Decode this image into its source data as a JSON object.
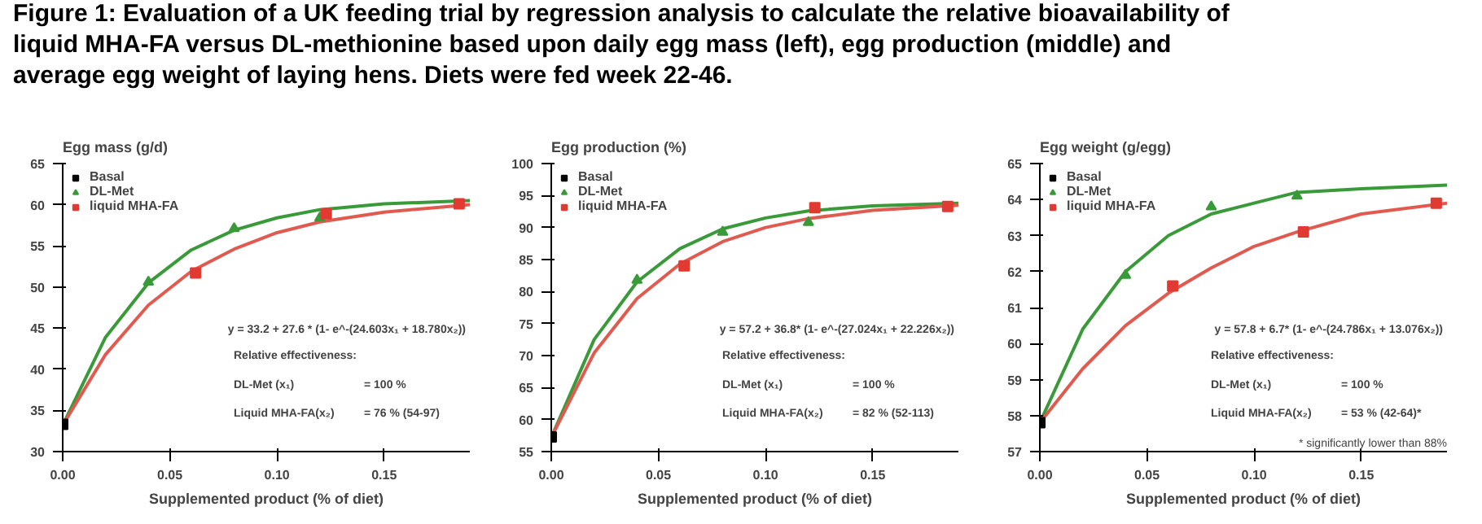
{
  "chart_data": [
    {
      "type": "scatter",
      "title": "Figure 1: Evaluation of a UK feeding trial by regression analysis to calculate the relative bioavailability of liquid MHA-FA versus DL-methionine based upon daily egg mass (left), egg production (middle) and average egg weight of laying hens. Diets were fed week 22-46.",
      "ylabel": "Egg mass (g/d)",
      "xlabel": "Supplemented product (% of diet)",
      "xlim": [
        0,
        0.19
      ],
      "xticks": [
        {
          "value": 0,
          "label": "0.00"
        },
        {
          "value": 0.05,
          "label": "0.05"
        },
        {
          "value": 0.1,
          "label": "0.10"
        },
        {
          "value": 0.15,
          "label": "0.15"
        }
      ],
      "ylim": [
        30,
        65
      ],
      "yticks": [
        30,
        35,
        40,
        45,
        50,
        55,
        60,
        65
      ],
      "grid": false,
      "legend": "top left",
      "series": [
        {
          "type": "line",
          "color": "#3a9a3a",
          "x": [
            0,
            0.02,
            0.04,
            0.06,
            0.08,
            0.1,
            0.12,
            0.15,
            0.19
          ],
          "values": [
            33.2,
            43.9,
            50.5,
            54.5,
            56.9,
            58.4,
            59.4,
            60.1,
            60.5
          ]
        },
        {
          "type": "line",
          "color": "#e05a50",
          "x": [
            0,
            0.02,
            0.04,
            0.06,
            0.08,
            0.1,
            0.12,
            0.15,
            0.19
          ],
          "values": [
            33.2,
            41.8,
            47.8,
            51.9,
            54.6,
            56.6,
            57.9,
            59.1,
            60.0
          ]
        },
        {
          "name": "Basal",
          "color": "#000000",
          "marker": "square",
          "x": [
            0
          ],
          "values": [
            33.3
          ]
        },
        {
          "name": "DL-Met",
          "color": "#3a9a3a",
          "marker": "triangle",
          "x": [
            0.04,
            0.08,
            0.12
          ],
          "values": [
            50.6,
            57.1,
            58.4
          ]
        },
        {
          "name": "liquid MHA-FA",
          "color": "#e03a32",
          "marker": "square",
          "x": [
            0.062,
            0.123,
            0.185
          ],
          "values": [
            51.7,
            58.9,
            60.1
          ]
        }
      ],
      "annotations": [
        "y = 33.2 + 27.6 * (1- e^-(24.603x₁ + 18.780x₂))",
        "Relative effectiveness:",
        "DL-Met (x₁)",
        "= 100 %",
        "Liquid MHA-FA(x₂)",
        "= 76 % (54-97)"
      ]
    },
    {
      "type": "scatter",
      "ylabel": "Egg production (%)",
      "xlabel": "Supplemented product (% of diet)",
      "xlim": [
        0,
        0.19
      ],
      "xticks": [
        {
          "value": 0,
          "label": "0.00"
        },
        {
          "value": 0.05,
          "label": "0.05"
        },
        {
          "value": 0.1,
          "label": "0.10"
        },
        {
          "value": 0.15,
          "label": "0.15"
        }
      ],
      "ylim": [
        55,
        100
      ],
      "yticks": [
        55,
        60,
        65,
        70,
        75,
        80,
        85,
        90,
        95,
        100
      ],
      "grid": false,
      "legend": "top left",
      "series": [
        {
          "type": "line",
          "color": "#3a9a3a",
          "x": [
            0,
            0.02,
            0.04,
            0.06,
            0.08,
            0.1,
            0.12,
            0.15,
            0.19
          ],
          "values": [
            57.2,
            72.5,
            81.5,
            86.7,
            89.8,
            91.5,
            92.6,
            93.4,
            93.8
          ]
        },
        {
          "type": "line",
          "color": "#e05a50",
          "x": [
            0,
            0.02,
            0.04,
            0.06,
            0.08,
            0.1,
            0.12,
            0.15,
            0.19
          ],
          "values": [
            57.2,
            70.4,
            78.9,
            84.3,
            87.8,
            90.0,
            91.4,
            92.7,
            93.5
          ]
        },
        {
          "name": "Basal",
          "color": "#000000",
          "marker": "square",
          "x": [
            0
          ],
          "values": [
            57.3
          ]
        },
        {
          "name": "DL-Met",
          "color": "#3a9a3a",
          "marker": "triangle",
          "x": [
            0.04,
            0.08,
            0.12
          ],
          "values": [
            81.8,
            89.3,
            90.8
          ]
        },
        {
          "name": "liquid MHA-FA",
          "color": "#e03a32",
          "marker": "square",
          "x": [
            0.062,
            0.123,
            0.185
          ],
          "values": [
            84.0,
            93.1,
            93.3
          ]
        }
      ],
      "annotations": [
        "y = 57.2 + 36.8* (1- e^-(27.024x₁ + 22.226x₂))",
        "Relative effectiveness:",
        "DL-Met (x₁)",
        "= 100 %",
        "Liquid MHA-FA(x₂)",
        "= 82 % (52-113)"
      ]
    },
    {
      "type": "scatter",
      "ylabel": "Egg weight (g/egg)",
      "xlabel": "Supplemented product (% of diet)",
      "xlim": [
        0,
        0.19
      ],
      "xticks": [
        {
          "value": 0,
          "label": "0.00"
        },
        {
          "value": 0.05,
          "label": "0.05"
        },
        {
          "value": 0.1,
          "label": "0.10"
        },
        {
          "value": 0.15,
          "label": "0.15"
        }
      ],
      "ylim": [
        57,
        65
      ],
      "yticks": [
        57,
        58,
        59,
        60,
        61,
        62,
        63,
        64,
        65
      ],
      "grid": false,
      "legend": "top left",
      "series": [
        {
          "type": "line",
          "color": "#3a9a3a",
          "x": [
            0,
            0.02,
            0.04,
            0.06,
            0.08,
            0.1,
            0.12,
            0.15,
            0.19
          ],
          "values": [
            57.8,
            60.4,
            62.0,
            63.0,
            63.6,
            63.9,
            64.2,
            64.3,
            64.4
          ]
        },
        {
          "type": "line",
          "color": "#e05a50",
          "x": [
            0,
            0.02,
            0.04,
            0.06,
            0.08,
            0.1,
            0.12,
            0.15,
            0.19
          ],
          "values": [
            57.8,
            59.3,
            60.5,
            61.4,
            62.1,
            62.7,
            63.1,
            63.6,
            63.9
          ]
        },
        {
          "name": "Basal",
          "color": "#000000",
          "marker": "square",
          "x": [
            0
          ],
          "values": [
            57.8
          ]
        },
        {
          "name": "DL-Met",
          "color": "#3a9a3a",
          "marker": "triangle",
          "x": [
            0.04,
            0.08,
            0.12
          ],
          "values": [
            61.9,
            63.8,
            64.1
          ]
        },
        {
          "name": "liquid MHA-FA",
          "color": "#e03a32",
          "marker": "square",
          "x": [
            0.062,
            0.123,
            0.185
          ],
          "values": [
            61.6,
            63.1,
            63.9
          ]
        }
      ],
      "annotations": [
        "y = 57.8 + 6.7* (1- e^-(24.786x₁ + 13.076x₂))",
        "Relative effectiveness:",
        "DL-Met (x₁)",
        "= 100 %",
        "Liquid MHA-FA(x₂)",
        "= 53 % (42-64)*",
        "* significantly lower than 88%"
      ]
    }
  ]
}
